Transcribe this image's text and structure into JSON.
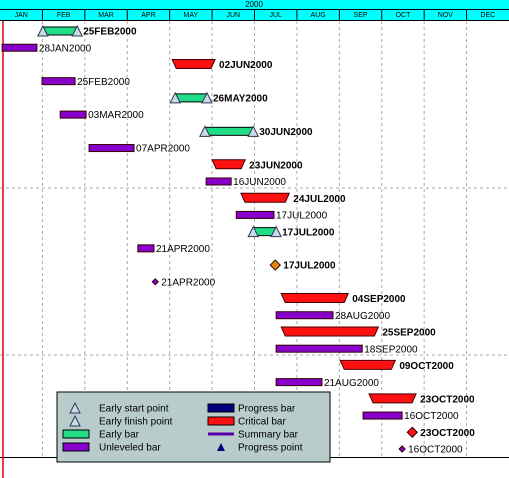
{
  "chart_data": {
    "type": "gantt",
    "title": "2000",
    "categories": [
      "JAN",
      "FEB",
      "MAR",
      "APR",
      "MAY",
      "JUN",
      "JUL",
      "AUG",
      "SEP",
      "OCT",
      "NOV",
      "DEC"
    ],
    "xlim": [
      0,
      12
    ],
    "tasks": [
      {
        "kind": "early",
        "start": 1.01,
        "end": 1.82,
        "label": "25FEB2000"
      },
      {
        "kind": "unleveled",
        "start": 0.05,
        "end": 0.87,
        "label": "28JAN2000"
      },
      {
        "kind": "critical",
        "start": 4.06,
        "end": 5.07,
        "label": "02JUN2000"
      },
      {
        "kind": "unleveled",
        "start": 0.99,
        "end": 1.77,
        "label": "25FEB2000"
      },
      {
        "kind": "early",
        "start": 4.13,
        "end": 4.88,
        "label": "26MAY2000"
      },
      {
        "kind": "unleveled",
        "start": 1.42,
        "end": 2.03,
        "label": "03MAR2000"
      },
      {
        "kind": "early",
        "start": 4.83,
        "end": 5.97,
        "label": "30JUN2000"
      },
      {
        "kind": "unleveled",
        "start": 2.1,
        "end": 3.16,
        "label": "07APR2000"
      },
      {
        "kind": "critical",
        "start": 5.0,
        "end": 5.78,
        "label": "23JUN2000"
      },
      {
        "kind": "unleveled",
        "start": 4.86,
        "end": 5.45,
        "label": "16JUN2000"
      },
      {
        "kind": "critical",
        "start": 5.68,
        "end": 6.82,
        "label": "24JUL2000"
      },
      {
        "kind": "unleveled",
        "start": 5.57,
        "end": 6.46,
        "label": "17JUL2000"
      },
      {
        "kind": "early",
        "start": 5.97,
        "end": 6.51,
        "label": "17JUL2000"
      },
      {
        "kind": "unleveled",
        "start": 3.25,
        "end": 3.63,
        "label": "21APR2000"
      },
      {
        "kind": "milestone-early",
        "date": 6.49,
        "label": "17JUL2000"
      },
      {
        "kind": "milestone-unleveled",
        "date": 3.66,
        "label": "21APR2000"
      },
      {
        "kind": "critical",
        "start": 6.63,
        "end": 8.21,
        "label": "04SEP2000"
      },
      {
        "kind": "unleveled",
        "start": 6.51,
        "end": 7.85,
        "label": "28AUG2000"
      },
      {
        "kind": "critical",
        "start": 6.63,
        "end": 8.92,
        "label": "25SEP2000"
      },
      {
        "kind": "unleveled",
        "start": 6.51,
        "end": 8.54,
        "label": "18SEP2000"
      },
      {
        "kind": "critical",
        "start": 8.02,
        "end": 9.32,
        "label": "09OCT2000"
      },
      {
        "kind": "unleveled",
        "start": 6.51,
        "end": 7.59,
        "label": "21AUG2000"
      },
      {
        "kind": "critical",
        "start": 8.7,
        "end": 9.81,
        "label": "23OCT2000"
      },
      {
        "kind": "unleveled",
        "start": 8.56,
        "end": 9.48,
        "label": "16OCT2000"
      },
      {
        "kind": "milestone-critical",
        "date": 9.72,
        "label": "23OCT2000"
      },
      {
        "kind": "milestone-unleveled",
        "date": 9.48,
        "label": "16OCT2000"
      }
    ],
    "legend": [
      {
        "symbol": "start-point",
        "name": "Early start point"
      },
      {
        "symbol": "finish-point",
        "name": "Early finish point"
      },
      {
        "symbol": "early-bar",
        "name": "Early bar"
      },
      {
        "symbol": "unleveled-bar",
        "name": "Unleveled bar"
      },
      {
        "symbol": "progress-bar",
        "name": "Progress bar"
      },
      {
        "symbol": "critical-bar",
        "name": "Critical bar"
      },
      {
        "symbol": "summary-bar",
        "name": "Summary bar"
      },
      {
        "symbol": "progress-point",
        "name": "Progress point"
      }
    ]
  }
}
